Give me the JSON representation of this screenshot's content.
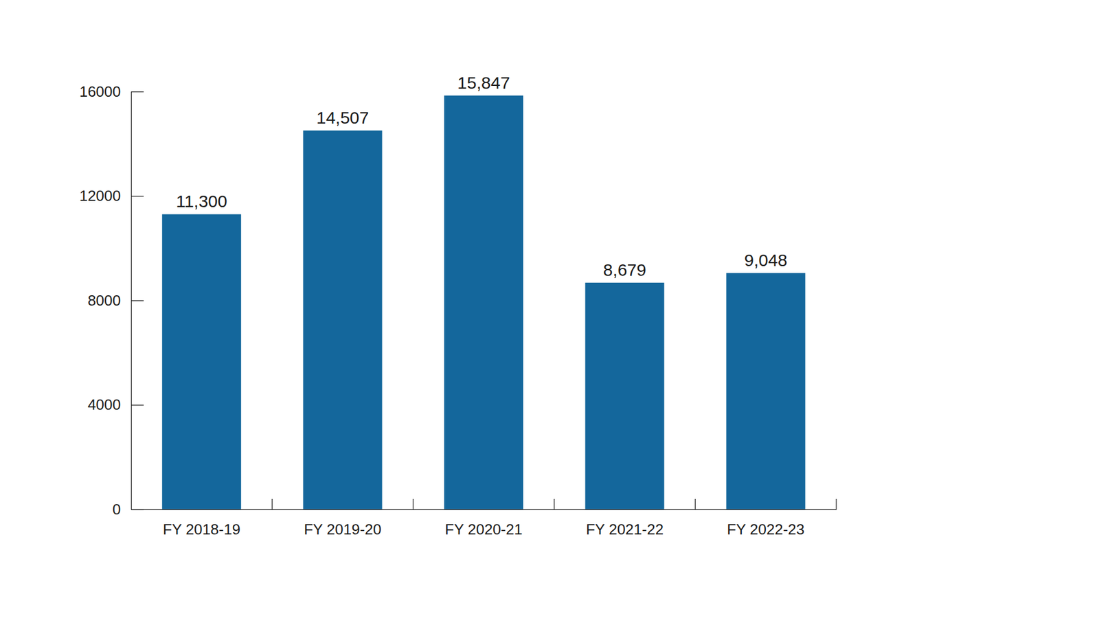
{
  "chart_data": {
    "type": "bar",
    "categories": [
      "FY 2018-19",
      "FY 2019-20",
      "FY 2020-21",
      "FY 2021-22",
      "FY 2022-23"
    ],
    "values": [
      11300,
      14507,
      15847,
      8679,
      9048
    ],
    "value_labels": [
      "11,300",
      "14,507",
      "15,847",
      "8,679",
      "9,048"
    ],
    "color": "#14679c",
    "ylim": [
      0,
      16000
    ],
    "yticks": [
      0,
      4000,
      8000,
      12000,
      16000
    ],
    "grid": false,
    "data_labels": true
  }
}
